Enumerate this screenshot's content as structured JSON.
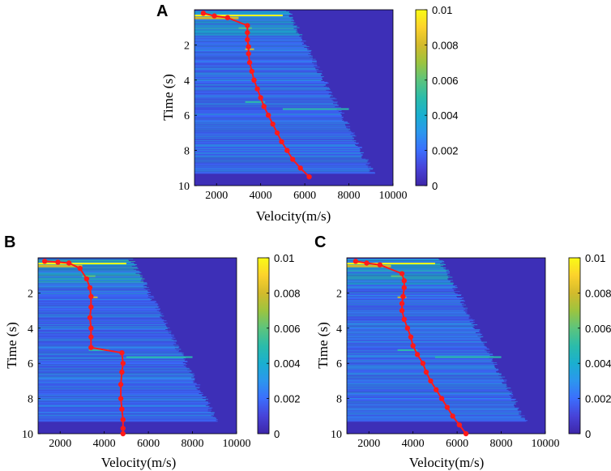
{
  "colors": {
    "background": "#3d2fb7",
    "pick_line": "#ff1a1a",
    "colormap": [
      "#3e26a8",
      "#4743d8",
      "#3b6efd",
      "#2c96ee",
      "#1aafd0",
      "#2bbcaa",
      "#5cc47d",
      "#9cc43f",
      "#d3ba2c",
      "#fcd22c",
      "#f9fb15"
    ]
  },
  "chart_data": [
    {
      "panel": "A",
      "type": "heatmap",
      "title": "",
      "xlabel": "Velocity(m/s)",
      "ylabel": "Time (s)",
      "xlim": [
        1000,
        10000
      ],
      "ylim": [
        0,
        10
      ],
      "xticks": [
        "2000",
        "4000",
        "6000",
        "8000",
        "10000"
      ],
      "yticks": [
        "2",
        "4",
        "6",
        "8",
        "10"
      ],
      "colorbar": {
        "range": [
          0,
          0.01
        ],
        "ticks": [
          "0",
          "0.002",
          "0.004",
          "0.006",
          "0.008",
          "0.01"
        ]
      },
      "picks": {
        "time": [
          0.2,
          0.35,
          0.45,
          0.9,
          1.3,
          1.7,
          2.1,
          2.5,
          3.0,
          3.5,
          4.0,
          4.5,
          5.0,
          5.5,
          6.0,
          6.5,
          7.0,
          7.5,
          8.0,
          8.5,
          9.0,
          9.5
        ],
        "velocity": [
          1400,
          1900,
          2500,
          3400,
          3400,
          3400,
          3450,
          3450,
          3500,
          3600,
          3700,
          3850,
          4000,
          4150,
          4350,
          4550,
          4750,
          4950,
          5200,
          5450,
          5800,
          6200
        ]
      }
    },
    {
      "panel": "B",
      "type": "heatmap",
      "title": "",
      "xlabel": "Velocity(m/s)",
      "ylabel": "Time (s)",
      "xlim": [
        1000,
        10000
      ],
      "ylim": [
        0,
        10
      ],
      "xticks": [
        "2000",
        "4000",
        "6000",
        "8000",
        "10000"
      ],
      "yticks": [
        "2",
        "4",
        "6",
        "8",
        "10"
      ],
      "colorbar": {
        "range": [
          0,
          0.01
        ],
        "ticks": [
          "0",
          "0.002",
          "0.004",
          "0.006",
          "0.008",
          "0.01"
        ]
      },
      "picks": {
        "time": [
          0.2,
          0.25,
          0.3,
          0.6,
          1.2,
          1.7,
          2.2,
          2.8,
          3.4,
          4.0,
          4.5,
          5.1,
          5.4,
          6.0,
          6.5,
          7.2,
          8.0,
          8.6,
          9.2,
          9.7,
          10.0
        ],
        "velocity": [
          1300,
          1900,
          2400,
          2900,
          3200,
          3350,
          3400,
          3400,
          3350,
          3400,
          3400,
          3400,
          4800,
          4850,
          4800,
          4750,
          4750,
          4800,
          4850,
          4850,
          4850
        ]
      }
    },
    {
      "panel": "C",
      "type": "heatmap",
      "title": "",
      "xlabel": "Velocity(m/s)",
      "ylabel": "Time (s)",
      "xlim": [
        1000,
        10000
      ],
      "ylim": [
        0,
        10
      ],
      "xticks": [
        "2000",
        "4000",
        "6000",
        "8000",
        "10000"
      ],
      "yticks": [
        "2",
        "4",
        "6",
        "8",
        "10"
      ],
      "colorbar": {
        "range": [
          0,
          0.01
        ],
        "ticks": [
          "0",
          "0.002",
          "0.004",
          "0.006",
          "0.008",
          "0.01"
        ]
      },
      "picks": {
        "time": [
          0.2,
          0.3,
          0.4,
          0.9,
          1.3,
          1.7,
          2.2,
          2.6,
          3.0,
          3.5,
          4.0,
          4.5,
          5.0,
          5.5,
          6.0,
          6.5,
          7.0,
          7.5,
          8.0,
          8.5,
          9.0,
          9.5,
          10.0
        ],
        "velocity": [
          1400,
          1900,
          2500,
          3500,
          3600,
          3600,
          3550,
          3500,
          3500,
          3600,
          3750,
          3900,
          4000,
          4200,
          4450,
          4600,
          4800,
          5050,
          5300,
          5550,
          5800,
          6100,
          6400
        ]
      }
    }
  ]
}
